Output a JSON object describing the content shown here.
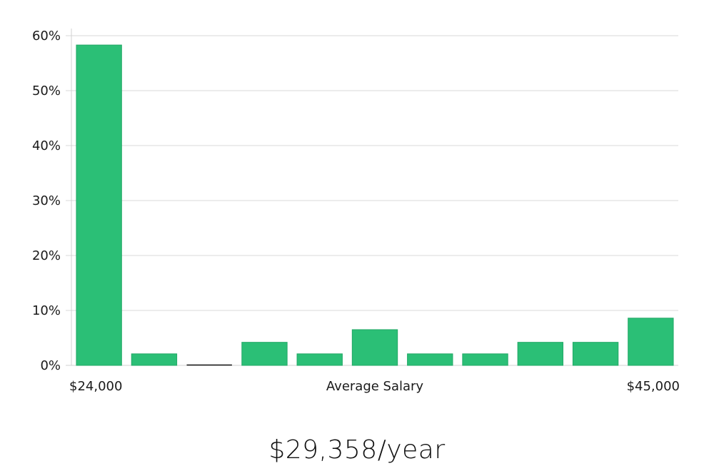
{
  "chart_data": {
    "type": "bar",
    "title": "",
    "xlabel": "Average Salary",
    "ylabel": "",
    "x_min_label": "$24,000",
    "x_max_label": "$45,000",
    "ylim": [
      0,
      60
    ],
    "yticks": [
      0,
      10,
      20,
      30,
      40,
      50,
      60
    ],
    "ytick_labels": [
      "0%",
      "10%",
      "20%",
      "30%",
      "40%",
      "50%",
      "60%"
    ],
    "grid": true,
    "bar_color": "#2bbf76",
    "values": [
      58.3,
      2.1,
      0,
      4.2,
      2.1,
      6.5,
      2.1,
      2.1,
      4.2,
      4.2,
      8.6
    ]
  },
  "summary": {
    "salary_text": "$29,358/year"
  }
}
